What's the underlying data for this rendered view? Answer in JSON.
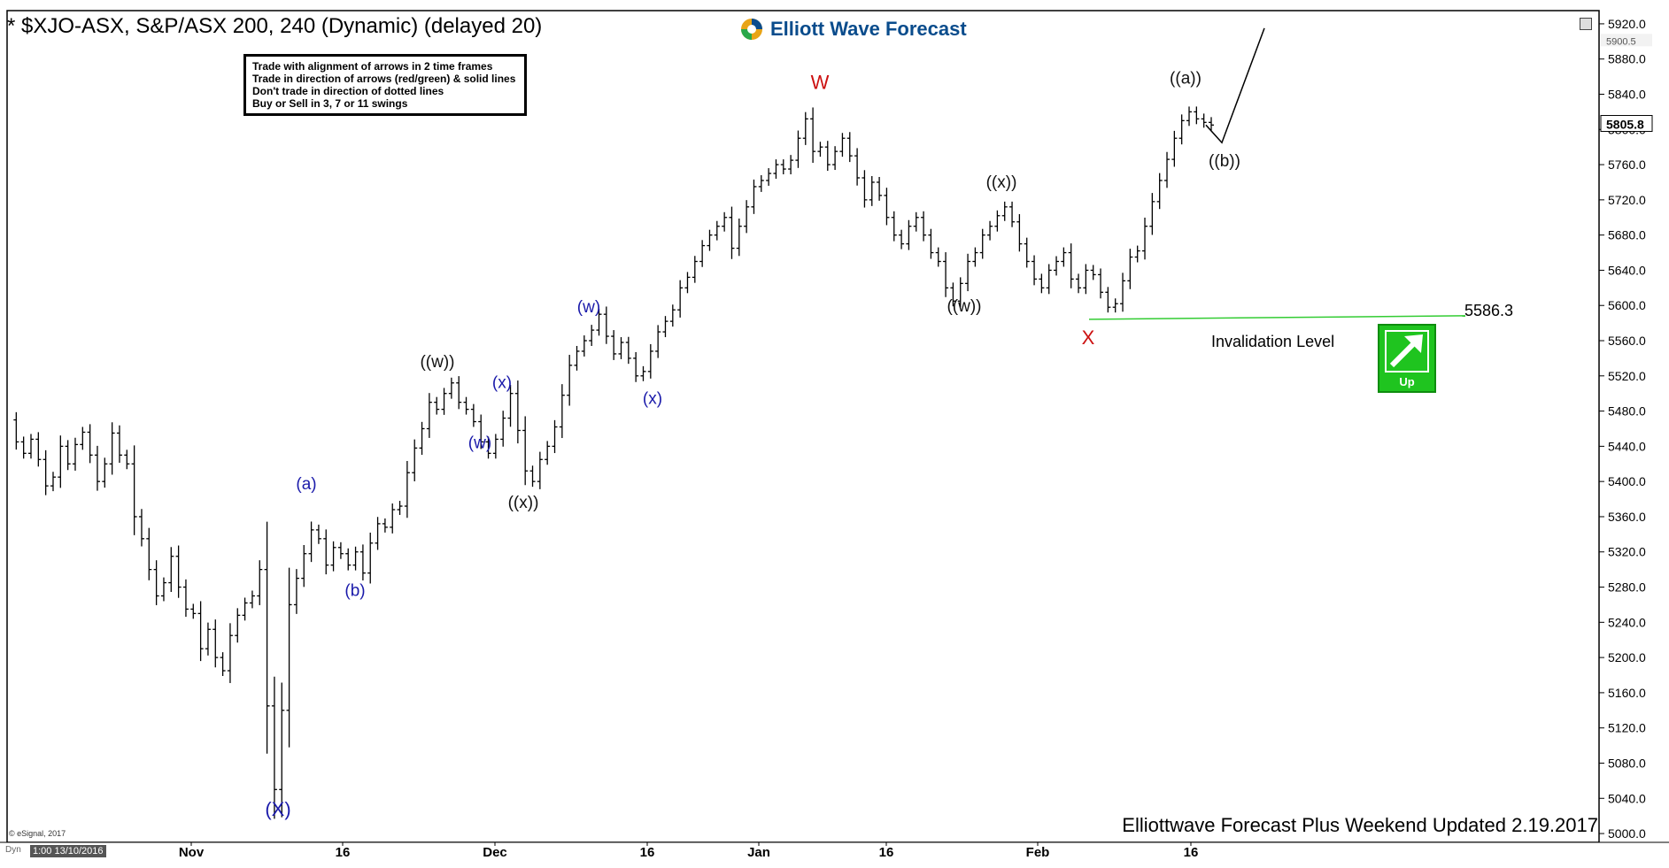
{
  "header": {
    "title": "* $XJO-ASX, S&P/ASX 200, 240 (Dynamic) (delayed 20)",
    "logo_text": "Elliott Wave Forecast"
  },
  "rules": [
    "Trade with alignment of arrows in 2 time frames",
    "Trade in direction of arrows (red/green) & solid lines",
    "Don't trade in direction of dotted lines",
    "Buy or Sell in 3, 7 or 11 swings"
  ],
  "footer": {
    "text": "Elliottwave Forecast Plus Weekend Updated 2.19.2017",
    "copyright": "© eSignal, 2017",
    "dyn": "Dyn",
    "date_box": "1:00 13/10/2016"
  },
  "up_button": {
    "label": "Up",
    "color": "#1fc41f"
  },
  "chart_data": {
    "type": "ohlc",
    "title": "* $XJO-ASX, S&P/ASX 200, 240 (Dynamic) (delayed 20)",
    "ylim": [
      4990,
      5935
    ],
    "y_ticks": [
      5000,
      5040,
      5080,
      5120,
      5160,
      5200,
      5240,
      5280,
      5320,
      5360,
      5400,
      5440,
      5480,
      5520,
      5560,
      5600,
      5640,
      5680,
      5720,
      5760,
      5800,
      5840,
      5880,
      5920
    ],
    "y_tick_labels": [
      "5000.0",
      "5040.0",
      "5080.0",
      "5120.0",
      "5160.0",
      "5200.0",
      "5240.0",
      "5280.0",
      "5320.0",
      "5360.0",
      "5400.0",
      "5440.0",
      "5480.0",
      "5520.0",
      "5560.0",
      "5600.0",
      "5640.0",
      "5680.0",
      "5720.0",
      "5760.0",
      "5800.0",
      "5840.0",
      "5880.0",
      "5920.0"
    ],
    "x_labels": [
      "Nov",
      "16",
      "Dec",
      "16",
      "Jan",
      "16",
      "Feb",
      "16"
    ],
    "last_price_label": "5805.8",
    "secondary_price_label": "5900.5",
    "price_path": [
      5470,
      5445,
      5432,
      5448,
      5425,
      5395,
      5405,
      5440,
      5420,
      5442,
      5456,
      5430,
      5400,
      5420,
      5455,
      5430,
      5420,
      5360,
      5335,
      5300,
      5270,
      5285,
      5315,
      5280,
      5255,
      5250,
      5210,
      5232,
      5200,
      5185,
      5225,
      5248,
      5262,
      5270,
      5300,
      5145,
      5050,
      5140,
      5260,
      5290,
      5318,
      5345,
      5335,
      5305,
      5325,
      5318,
      5305,
      5320,
      5296,
      5330,
      5352,
      5348,
      5368,
      5372,
      5410,
      5438,
      5460,
      5490,
      5482,
      5500,
      5512,
      5490,
      5482,
      5468,
      5445,
      5432,
      5448,
      5472,
      5500,
      5458,
      5412,
      5400,
      5425,
      5440,
      5462,
      5498,
      5532,
      5548,
      5560,
      5572,
      5590,
      5565,
      5545,
      5558,
      5540,
      5520,
      5525,
      5548,
      5570,
      5582,
      5595,
      5620,
      5632,
      5650,
      5668,
      5680,
      5690,
      5700,
      5665,
      5690,
      5712,
      5735,
      5742,
      5750,
      5760,
      5755,
      5765,
      5790,
      5812,
      5775,
      5780,
      5760,
      5775,
      5790,
      5770,
      5745,
      5720,
      5740,
      5725,
      5700,
      5680,
      5670,
      5690,
      5700,
      5680,
      5660,
      5650,
      5620,
      5605,
      5625,
      5650,
      5660,
      5680,
      5690,
      5702,
      5712,
      5695,
      5670,
      5650,
      5630,
      5620,
      5640,
      5650,
      5660,
      5630,
      5620,
      5640,
      5635,
      5615,
      5598,
      5602,
      5628,
      5655,
      5662,
      5690,
      5718,
      5742,
      5766,
      5790,
      5810,
      5820,
      5812,
      5808,
      5805
    ],
    "projection": [
      5805,
      5785,
      5915
    ],
    "wave_labels": [
      {
        "text": "(X)",
        "price": 5020,
        "color": "#1a1aaa"
      },
      {
        "text": "(a)",
        "price": 5391,
        "color": "#1a1aaa"
      },
      {
        "text": "(b)",
        "price": 5270,
        "color": "#1a1aaa"
      },
      {
        "text": "((w))",
        "price": 5530,
        "color": "#111111"
      },
      {
        "text": "(w)",
        "price": 5438,
        "color": "#1a1aaa"
      },
      {
        "text": "(x)",
        "price": 5506,
        "color": "#1a1aaa"
      },
      {
        "text": "((x))",
        "price": 5370,
        "color": "#111111"
      },
      {
        "text": "(w)",
        "price": 5592,
        "color": "#1a1aaa"
      },
      {
        "text": "(x)",
        "price": 5488,
        "color": "#1a1aaa"
      },
      {
        "text": "W",
        "price": 5846,
        "color": "#cc1111"
      },
      {
        "text": "((w))",
        "price": 5593,
        "color": "#111111"
      },
      {
        "text": "((x))",
        "price": 5734,
        "color": "#111111"
      },
      {
        "text": "X",
        "price": 5556,
        "color": "#cc1111"
      },
      {
        "text": "((a))",
        "price": 5852,
        "color": "#111111"
      },
      {
        "text": "((b))",
        "price": 5758,
        "color": "#111111"
      }
    ],
    "invalidation": {
      "value": 5586.3,
      "value_label": "5586.3",
      "label": "Invalidation Level",
      "color": "#33cc33"
    },
    "grid": false
  }
}
